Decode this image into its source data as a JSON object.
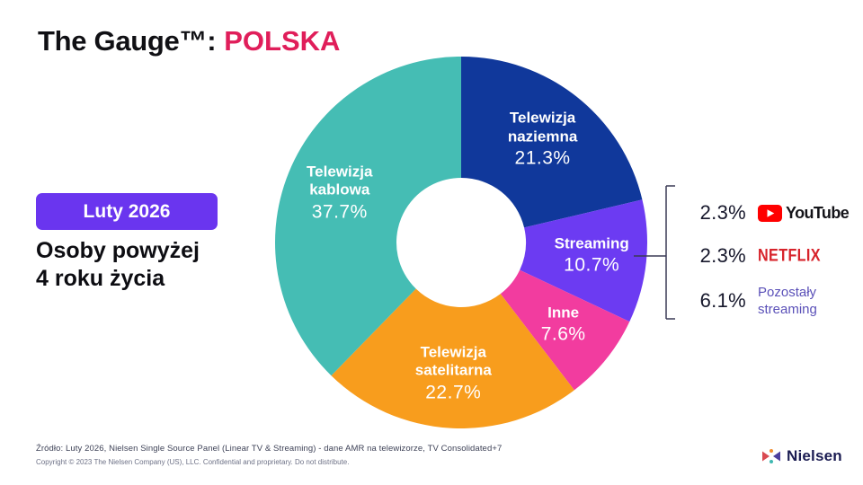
{
  "header": {
    "title_prefix": "The Gauge™:",
    "title_highlight": "POLSKA"
  },
  "left_panel": {
    "badge_label": "Luty 2026",
    "subtitle": "Osoby powyżej\n4 roku życia"
  },
  "chart_data": {
    "type": "pie",
    "donut": true,
    "title": "The Gauge™: POLSKA",
    "unit": "%",
    "start_angle_deg": 0,
    "direction": "clockwise",
    "inner_radius_ratio": 0.35,
    "label_text_color": "#ffffff",
    "segments": [
      {
        "name": "Telewizja naziemna",
        "label": "Telewizja\nnaziemna",
        "value": 21.3,
        "display": "21.3%",
        "color": "#10389b"
      },
      {
        "name": "Streaming",
        "label": "Streaming",
        "value": 10.7,
        "display": "10.7%",
        "color": "#6c3bf2"
      },
      {
        "name": "Inne",
        "label": "Inne",
        "value": 7.6,
        "display": "7.6%",
        "color": "#f23c9f"
      },
      {
        "name": "Telewizja satelitarna",
        "label": "Telewizja\nsatelitarna",
        "value": 22.7,
        "display": "22.7%",
        "color": "#f89d1d"
      },
      {
        "name": "Telewizja kablowa",
        "label": "Telewizja\nkablowa",
        "value": 37.7,
        "display": "37.7%",
        "color": "#45bdb4"
      }
    ],
    "breakdown": {
      "of_segment": "Streaming",
      "items": [
        {
          "value": "2.3%",
          "brand": "YouTube"
        },
        {
          "value": "2.3%",
          "brand": "NETFLIX"
        },
        {
          "value": "6.1%",
          "brand": "Pozostały\nstreaming"
        }
      ]
    }
  },
  "footer": {
    "source_line": "Źródło: Luty 2026, Nielsen Single Source Panel (Linear TV & Streaming) - dane AMR na telewizorze, TV Consolidated+7",
    "copyright_line": "Copyright © 2023 The Nielsen Company (US), LLC. Confidential and proprietary. Do not distribute.",
    "logo_text": "Nielsen"
  },
  "colors": {
    "highlight": "#e01e5a",
    "badge_bg": "#6a35ef",
    "youtube_red": "#ff0000",
    "netflix_red": "#d7232b",
    "other_streaming_purple": "#5a50b8",
    "bracket": "#3a3a55"
  }
}
